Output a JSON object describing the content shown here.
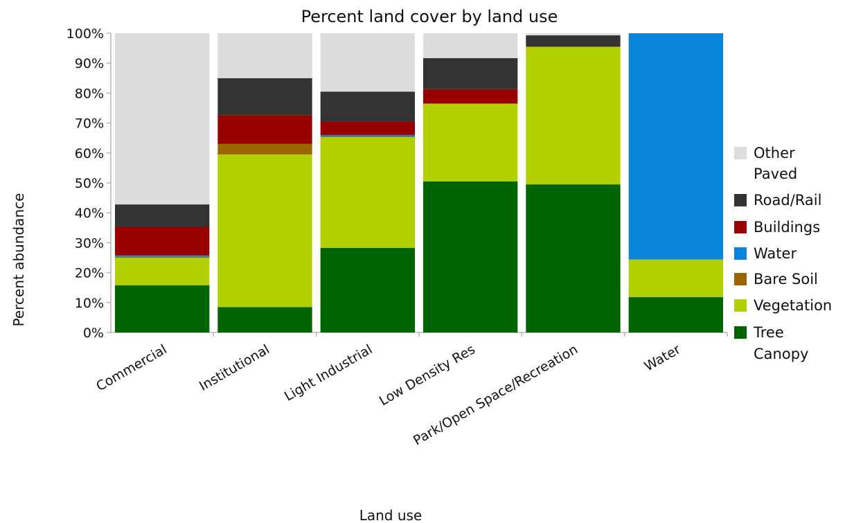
{
  "chart_data": {
    "type": "bar",
    "stacked": true,
    "title": "Percent land cover by land use",
    "xlabel": "Land use",
    "ylabel": "Percent abundance",
    "ylim": [
      0,
      100
    ],
    "yticks": [
      "0%",
      "10%",
      "20%",
      "30%",
      "40%",
      "50%",
      "60%",
      "70%",
      "80%",
      "90%",
      "100%"
    ],
    "grid": false,
    "legend_position": "right",
    "categories": [
      "Commercial",
      "Institutional",
      "Light Industrial",
      "Low Density Res",
      "Park/Open Space/Recreation",
      "Water"
    ],
    "series": [
      {
        "name": "Tree Canopy",
        "color": "#006400",
        "values": [
          15.8,
          8.5,
          28.3,
          50.5,
          49.5,
          11.8
        ]
      },
      {
        "name": "Vegetation",
        "color": "#b2d000",
        "values": [
          9.2,
          51.0,
          37.0,
          26.0,
          46.0,
          12.6
        ]
      },
      {
        "name": "Bare Soil",
        "color": "#9a6400",
        "values": [
          0.3,
          3.5,
          0.2,
          0.0,
          0.0,
          0.0
        ]
      },
      {
        "name": "Water",
        "color": "#0a84d8",
        "values": [
          0.5,
          0.0,
          0.5,
          0.0,
          0.0,
          75.6
        ]
      },
      {
        "name": "Buildings",
        "color": "#990000",
        "values": [
          9.5,
          9.6,
          4.5,
          4.8,
          0.1,
          0.0
        ]
      },
      {
        "name": "Road/Rail",
        "color": "#333333",
        "values": [
          7.5,
          12.4,
          10.0,
          10.4,
          3.7,
          0.0
        ]
      },
      {
        "name": "Other Paved",
        "color": "#dcdcdc",
        "values": [
          57.2,
          15.0,
          19.5,
          8.3,
          0.7,
          0.0
        ]
      }
    ],
    "legend_order": [
      "Other Paved",
      "Road/Rail",
      "Buildings",
      "Water",
      "Bare Soil",
      "Vegetation",
      "Tree Canopy"
    ]
  }
}
